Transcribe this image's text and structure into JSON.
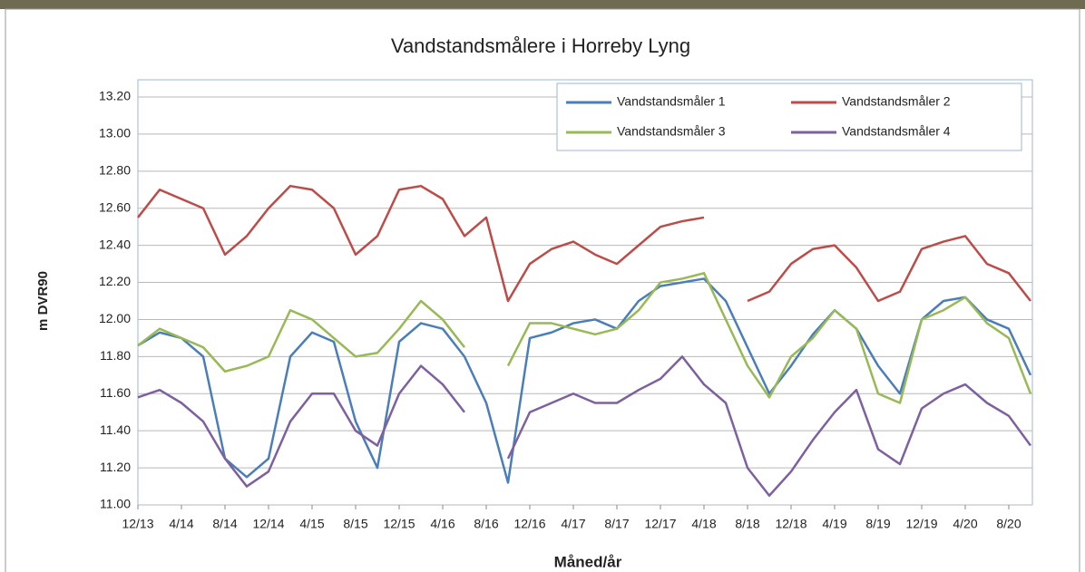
{
  "chart_data": {
    "type": "line",
    "title": "Vandstandsmålere i Horreby Lyng",
    "y_label": "m DVR90",
    "x_label": "Måned/år",
    "x": [
      "12/13",
      "2/14",
      "4/14",
      "6/14",
      "8/14",
      "10/14",
      "12/14",
      "2/15",
      "4/15",
      "6/15",
      "8/15",
      "10/15",
      "12/15",
      "2/16",
      "4/16",
      "6/16",
      "8/16",
      "10/16",
      "12/16",
      "2/17",
      "4/17",
      "6/17",
      "8/17",
      "10/17",
      "12/17",
      "2/18",
      "4/18",
      "6/18",
      "8/18",
      "10/18",
      "12/18",
      "2/19",
      "4/19",
      "6/19",
      "8/19",
      "10/19",
      "12/19",
      "2/20",
      "4/20",
      "6/20",
      "8/20",
      "10/20"
    ],
    "xticks": [
      "12/13",
      "4/14",
      "8/14",
      "12/14",
      "4/15",
      "8/15",
      "12/15",
      "4/16",
      "8/16",
      "12/16",
      "4/17",
      "8/17",
      "12/17",
      "4/18",
      "8/18",
      "12/18",
      "4/19",
      "8/19",
      "12/19",
      "4/20",
      "8/20"
    ],
    "series": [
      {
        "name": "Vandstandsmåler 1",
        "color": "#4a7ebb",
        "values": [
          11.86,
          11.93,
          11.9,
          11.8,
          11.25,
          11.15,
          11.25,
          11.8,
          11.93,
          11.88,
          11.45,
          11.2,
          11.88,
          11.98,
          11.95,
          11.8,
          11.55,
          11.12,
          11.9,
          11.93,
          11.98,
          12.0,
          11.95,
          12.1,
          12.18,
          12.2,
          12.22,
          12.1,
          11.85,
          11.6,
          11.75,
          11.92,
          12.05,
          11.95,
          11.75,
          11.6,
          12.0,
          12.1,
          12.12,
          12.0,
          11.95,
          11.7
        ]
      },
      {
        "name": "Vandstandsmåler 2",
        "color": "#be4b48",
        "values": [
          12.55,
          12.7,
          12.65,
          12.6,
          12.35,
          12.45,
          12.6,
          12.72,
          12.7,
          12.6,
          12.35,
          12.45,
          12.7,
          12.72,
          12.65,
          12.45,
          12.55,
          12.1,
          12.3,
          12.38,
          12.42,
          12.35,
          12.3,
          12.4,
          12.5,
          12.53,
          12.55,
          null,
          12.1,
          12.15,
          12.3,
          12.38,
          12.4,
          12.28,
          12.1,
          12.15,
          12.38,
          12.42,
          12.45,
          12.3,
          12.25,
          12.1
        ]
      },
      {
        "name": "Vandstandsmåler 3",
        "color": "#98b954",
        "values": [
          11.86,
          11.95,
          11.9,
          11.85,
          11.72,
          11.75,
          11.8,
          12.05,
          12.0,
          11.9,
          11.8,
          11.82,
          11.95,
          12.1,
          12.0,
          11.85,
          null,
          11.75,
          11.98,
          11.98,
          11.95,
          11.92,
          11.95,
          12.05,
          12.2,
          12.22,
          12.25,
          12.0,
          11.75,
          11.58,
          11.8,
          11.9,
          12.05,
          11.95,
          11.6,
          11.55,
          12.0,
          12.05,
          12.12,
          11.98,
          11.9,
          11.6
        ]
      },
      {
        "name": "Vandstandsmåler 4",
        "color": "#7d60a0",
        "values": [
          11.58,
          11.62,
          11.55,
          11.45,
          11.25,
          11.1,
          11.18,
          11.45,
          11.6,
          11.6,
          11.4,
          11.32,
          11.6,
          11.75,
          11.65,
          11.5,
          null,
          11.25,
          11.5,
          11.55,
          11.6,
          11.55,
          11.55,
          11.62,
          11.68,
          11.8,
          11.65,
          11.55,
          11.2,
          11.05,
          11.18,
          11.35,
          11.5,
          11.62,
          11.3,
          11.22,
          11.52,
          11.6,
          11.65,
          11.55,
          11.48,
          11.32
        ]
      }
    ],
    "ylim": [
      11.0,
      13.2
    ],
    "yticks": [
      {
        "value": 11,
        "label": "11.00"
      },
      {
        "value": 11.2,
        "label": "11.20"
      },
      {
        "value": 11.4,
        "label": "11.40"
      },
      {
        "value": 11.6,
        "label": "11.60"
      },
      {
        "value": 11.8,
        "label": "11.80"
      },
      {
        "value": 12,
        "label": "12.00"
      },
      {
        "value": 12.2,
        "label": "12.20"
      },
      {
        "value": 12.4,
        "label": "12.40"
      },
      {
        "value": 12.6,
        "label": "12.60"
      },
      {
        "value": 12.8,
        "label": "12.80"
      },
      {
        "value": 13,
        "label": "13.00"
      },
      {
        "value": 13.2,
        "label": "13.20"
      }
    ],
    "grid": true
  }
}
